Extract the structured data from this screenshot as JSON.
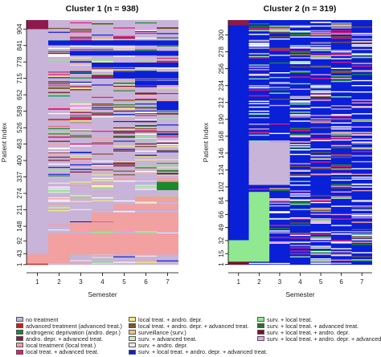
{
  "chart_data": [
    {
      "type": "heatmap",
      "title": "Cluster 1 (n = 938)",
      "xlabel": "Semester",
      "ylabel": "Patient Index",
      "x_ticks": [
        "1",
        "2",
        "3",
        "4",
        "5",
        "6",
        "7"
      ],
      "y_ticks": [
        "1",
        "43",
        "92",
        "148",
        "211",
        "274",
        "337",
        "400",
        "463",
        "526",
        "589",
        "652",
        "715",
        "778",
        "841",
        "904"
      ],
      "n_patients": 938,
      "semesters": 7,
      "dominant_state": "no treatment",
      "blocks": [
        {
          "state": "andro. depr. + advanced treat.",
          "rows": [
            904,
            938
          ],
          "semesters": [
            1,
            1
          ]
        },
        {
          "state": "surv. + local treat. + andro. depr. + advanced treat.",
          "rows": [
            842,
            860
          ],
          "semesters": [
            2,
            7
          ]
        },
        {
          "state": "surv. + local treat. + andro. depr. + advanced treat.",
          "rows": [
            803,
            820
          ],
          "semesters": [
            3,
            7
          ]
        },
        {
          "state": "surv. + local treat. + andro. depr. + advanced treat.",
          "rows": [
            758,
            775
          ],
          "semesters": [
            4,
            7
          ]
        },
        {
          "state": "surv. + local treat. + andro. depr. + advanced treat.",
          "rows": [
            715,
            740
          ],
          "semesters": [
            5,
            7
          ]
        },
        {
          "state": "surv. + local treat. + andro. depr. + advanced treat.",
          "rows": [
            690,
            705
          ],
          "semesters": [
            6,
            7
          ]
        },
        {
          "state": "surv. + local treat. + andro. depr. + advanced treat.",
          "rows": [
            596,
            627
          ],
          "semesters": [
            7,
            7
          ]
        },
        {
          "state": "androgenic deprivation (andro. depr.)",
          "rows": [
            287,
            318
          ],
          "semesters": [
            7,
            7
          ]
        },
        {
          "state": "local treatment (local treat.)",
          "rows": [
            319,
            332
          ],
          "semesters": [
            7,
            7
          ]
        },
        {
          "state": "local treatment (local treat.)",
          "rows": [
            242,
            262
          ],
          "semesters": [
            6,
            7
          ]
        },
        {
          "state": "local treatment (local treat.)",
          "rows": [
            210,
            232
          ],
          "semesters": [
            5,
            7
          ]
        },
        {
          "state": "local treatment (local treat.)",
          "rows": [
            165,
            200
          ],
          "semesters": [
            4,
            7
          ]
        },
        {
          "state": "local treatment (local treat.)",
          "rows": [
            128,
            163
          ],
          "semesters": [
            3,
            7
          ]
        },
        {
          "state": "local treatment (local treat.)",
          "rows": [
            40,
            120
          ],
          "semesters": [
            2,
            7
          ]
        },
        {
          "state": "local treatment (local treat.)",
          "rows": [
            5,
            40
          ],
          "semesters": [
            1,
            2
          ]
        },
        {
          "state": "advanced treatment (advanced treat.)",
          "rows": [
            1,
            4
          ],
          "semesters": [
            1,
            1
          ]
        }
      ]
    },
    {
      "type": "heatmap",
      "title": "Cluster 2 (n = 319)",
      "xlabel": "Semester",
      "ylabel": "Patient Index",
      "x_ticks": [
        "1",
        "2",
        "3",
        "4",
        "5",
        "6",
        "7"
      ],
      "y_ticks": [
        "1",
        "15",
        "32",
        "49",
        "66",
        "84",
        "102",
        "124",
        "146",
        "168",
        "190",
        "212",
        "234",
        "256",
        "278",
        "300"
      ],
      "n_patients": 319,
      "semesters": 7,
      "dominant_state": "surv. + local treat. + andro. depr. + advanced treat.",
      "blocks": [
        {
          "state": "andro. depr. + advanced treat.",
          "rows": [
            313,
            319
          ],
          "semesters": [
            1,
            1
          ]
        },
        {
          "state": "surv. + local treat. + andro. depr.",
          "rows": [
            1,
            5
          ],
          "semesters": [
            1,
            1
          ]
        },
        {
          "state": "surv. + local treat.",
          "rows": [
            5,
            32
          ],
          "semesters": [
            1,
            2
          ]
        },
        {
          "state": "surv. + local treat.",
          "rows": [
            32,
            95
          ],
          "semesters": [
            2,
            2
          ]
        },
        {
          "state": "no treatment",
          "rows": [
            105,
            160
          ],
          "semesters": [
            2,
            3
          ]
        }
      ]
    }
  ],
  "legend": [
    {
      "label": "no treatment",
      "color": "#c8b4d8"
    },
    {
      "label": "advanced treatment (advanced treat.)",
      "color": "#d7191c"
    },
    {
      "label": "androgenic deprivation (andro. depr.)",
      "color": "#1a8a2a"
    },
    {
      "label": "andro. depr. + advanced treat.",
      "color": "#8e1a4c"
    },
    {
      "label": "local treatment (local treat.)",
      "color": "#f2a0a0"
    },
    {
      "label": "local treat. + advanced treat.",
      "color": "#e9177a"
    },
    {
      "label": "local treat. + andro. depr.",
      "color": "#f2ec82"
    },
    {
      "label": "local treat. + andro. depr. + advanced treat.",
      "color": "#7a5530"
    },
    {
      "label": "surveillance (surv.)",
      "color": "#f7c08a"
    },
    {
      "label": "surv. + advanced treat.",
      "color": "#c8e8c0"
    },
    {
      "label": "surv. + andro. depr.",
      "color": "#e9e9e9"
    },
    {
      "label": "surv. + local treat. + andro. depr. + advanced treat.",
      "color": "#0a1fd8"
    },
    {
      "label": "surv. + local treat.",
      "color": "#90e890"
    },
    {
      "label": "surv. + local treat. + advanced treat.",
      "color": "#2f6f2a"
    },
    {
      "label": "surv. + local treat. + andro. depr.",
      "color": "#7a1230"
    },
    {
      "label": "surv. + local treat. + andro. depr. + advanced treat.",
      "color": "#f0a0f0"
    }
  ]
}
